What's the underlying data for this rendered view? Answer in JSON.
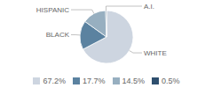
{
  "chart_data": {
    "type": "pie",
    "categories": [
      "WHITE",
      "BLACK",
      "HISPANIC",
      "A.I."
    ],
    "values": [
      67.2,
      17.7,
      14.5,
      0.5
    ],
    "value_labels": [
      "67.2%",
      "17.7%",
      "14.5%",
      "0.5%"
    ],
    "colors": [
      "#cdd5e0",
      "#5b82a0",
      "#97afc0",
      "#2e4f6e"
    ],
    "legend": "bottom"
  }
}
